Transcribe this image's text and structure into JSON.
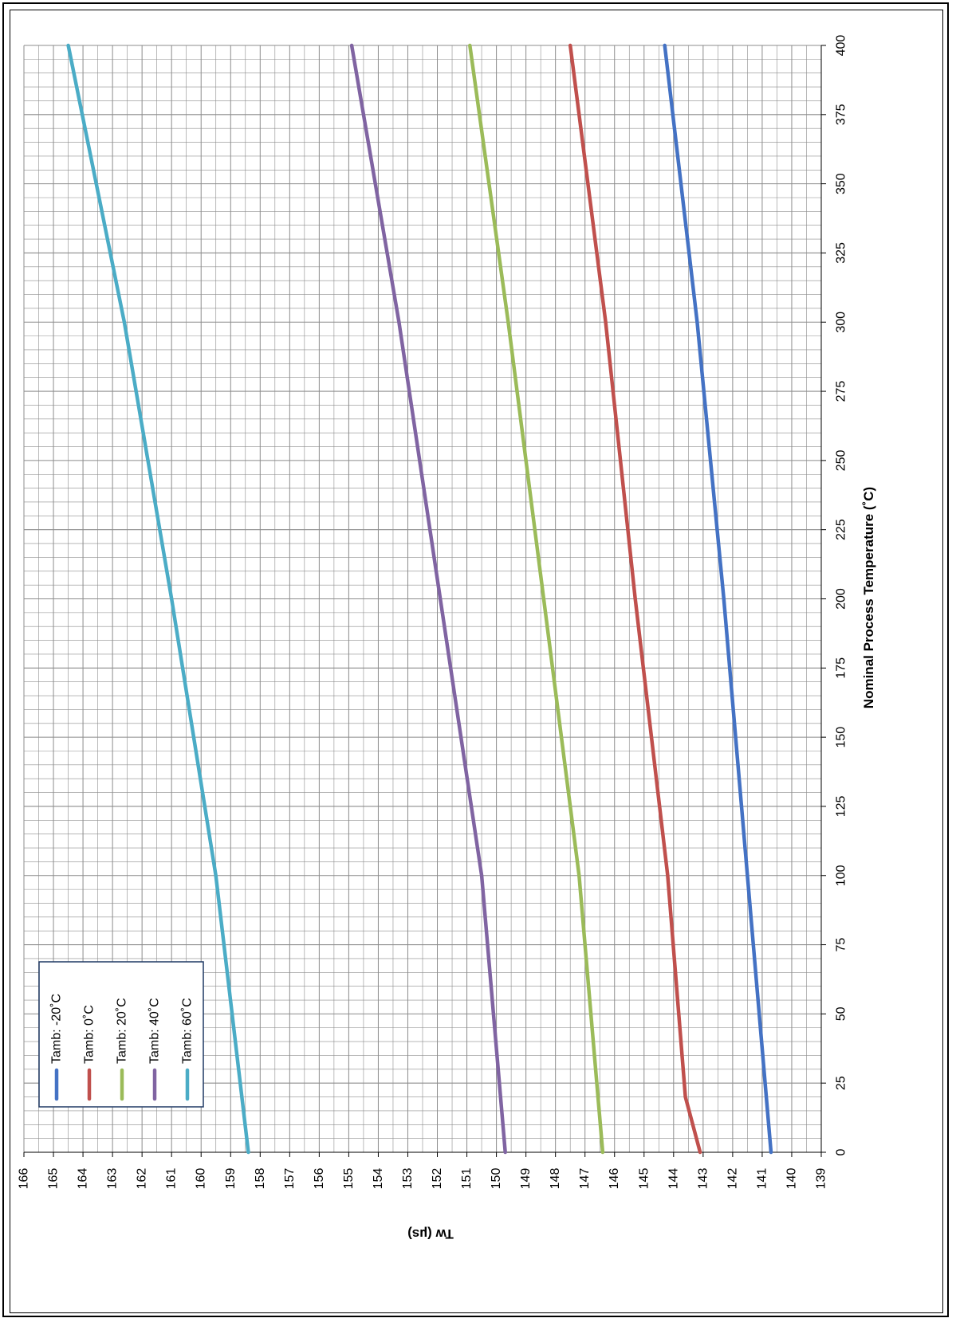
{
  "chart_data": {
    "type": "line",
    "orientation": "rotated-90-clockwise",
    "title": "",
    "xlabel": "Nominal Process Temperature (˚C)",
    "ylabel": "Tw (µs)",
    "xlim": [
      0,
      400
    ],
    "ylim": [
      139,
      166
    ],
    "x_ticks": [
      "0",
      "25",
      "50",
      "75",
      "100",
      "125",
      "150",
      "175",
      "200",
      "225",
      "250",
      "275",
      "300",
      "325",
      "350",
      "375",
      "400"
    ],
    "y_ticks": [
      "139",
      "140",
      "141",
      "142",
      "143",
      "144",
      "145",
      "146",
      "147",
      "148",
      "149",
      "150",
      "151",
      "152",
      "153",
      "154",
      "155",
      "156",
      "157",
      "158",
      "159",
      "160",
      "161",
      "162",
      "163",
      "164",
      "165",
      "166"
    ],
    "grid": true,
    "legend_position": "top-left",
    "colors": {
      "tamb_minus20": "#4472C4",
      "tamb_0": "#C0504D",
      "tamb_20": "#9BBB59",
      "tamb_40": "#8064A2",
      "tamb_60": "#4BACC6",
      "grid": "#8c8c8c",
      "axis": "#000000"
    },
    "series": [
      {
        "name": "Tamb: -20˚C",
        "x": [
          0,
          100,
          200,
          300,
          400
        ],
        "y": [
          140.7,
          141.5,
          142.3,
          143.2,
          144.3
        ]
      },
      {
        "name": "Tamb: 0˚C",
        "x": [
          0,
          20,
          100,
          200,
          300,
          400
        ],
        "y": [
          143.1,
          143.6,
          144.2,
          145.3,
          146.3,
          147.5
        ]
      },
      {
        "name": "Tamb: 20˚C",
        "x": [
          0,
          100,
          200,
          300,
          400
        ],
        "y": [
          146.4,
          147.2,
          148.4,
          149.6,
          150.9
        ]
      },
      {
        "name": "Tamb: 40˚C",
        "x": [
          0,
          100,
          200,
          300,
          400
        ],
        "y": [
          149.7,
          150.5,
          151.9,
          153.3,
          154.9
        ]
      },
      {
        "name": "Tamb: 60˚C",
        "x": [
          0,
          100,
          200,
          300,
          400
        ],
        "y": [
          158.4,
          159.5,
          161.0,
          162.6,
          164.5
        ]
      }
    ]
  }
}
